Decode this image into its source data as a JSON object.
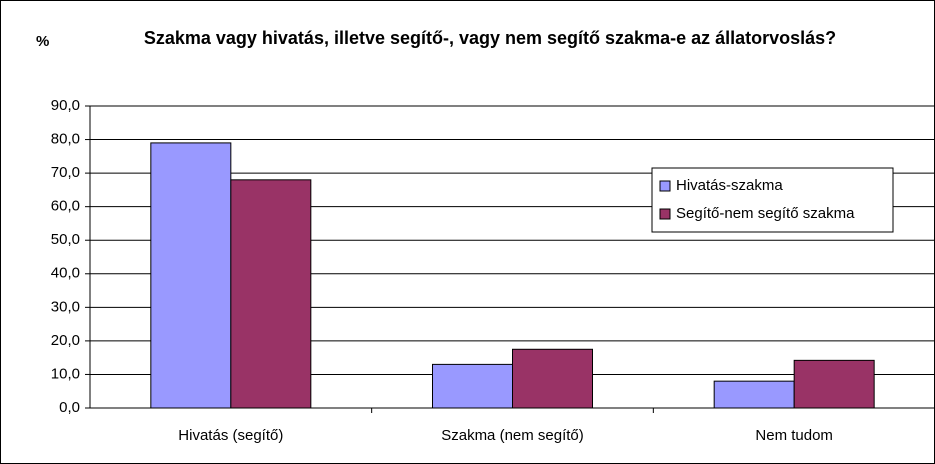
{
  "chart_data": {
    "type": "bar",
    "title": "Szakma vagy hivatás, illetve segítő-, vagy nem segítő szakma-e az állatorvoslás?",
    "y_label": "%",
    "categories": [
      "Hivatás (segítő)",
      "Szakma (nem segítő)",
      "Nem tudom"
    ],
    "series": [
      {
        "name": "Hivatás-szakma",
        "color": "#9999ff",
        "values": [
          79.0,
          13.0,
          8.0
        ]
      },
      {
        "name": "Segítő-nem segítő szakma",
        "color": "#993366",
        "values": [
          68.0,
          17.5,
          14.2
        ]
      }
    ],
    "ylim": [
      0,
      90
    ],
    "yticks": [
      {
        "value": 0,
        "label": "0,0"
      },
      {
        "value": 10,
        "label": "10,0"
      },
      {
        "value": 20,
        "label": "20,0"
      },
      {
        "value": 30,
        "label": "30,0"
      },
      {
        "value": 40,
        "label": "40,0"
      },
      {
        "value": 50,
        "label": "50,0"
      },
      {
        "value": 60,
        "label": "60,0"
      },
      {
        "value": 70,
        "label": "70,0"
      },
      {
        "value": 80,
        "label": "80,0"
      },
      {
        "value": 90,
        "label": "90,0"
      }
    ],
    "grid": true,
    "legend": "right"
  }
}
